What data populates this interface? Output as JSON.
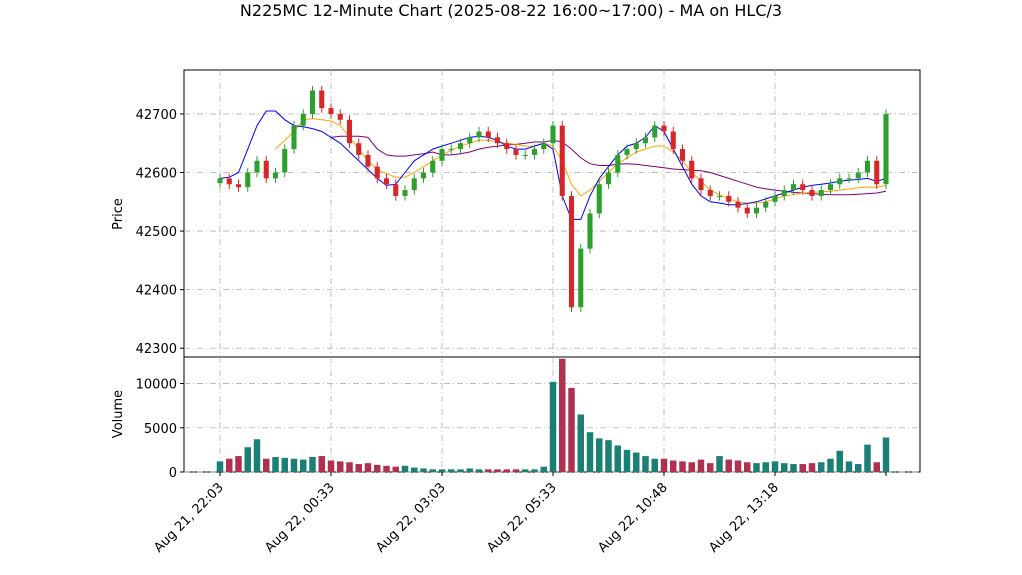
{
  "chart_data": {
    "type": "candlestick",
    "title": "N225MC 12-Minute Chart (2025-08-22 16:00~17:00) - MA on HLC/3",
    "price_panel": {
      "ylabel": "Price",
      "ylim": [
        42285,
        42775
      ],
      "yticks": [
        42300,
        42400,
        42500,
        42600,
        42700
      ]
    },
    "volume_panel": {
      "ylabel": "Volume",
      "ylim": [
        0,
        13000
      ],
      "yticks": [
        0,
        5000,
        10000
      ]
    },
    "x_tick_labels": [
      "Aug 21, 22:03",
      "Aug 22, 00:33",
      "Aug 22, 03:03",
      "Aug 22, 05:33",
      "Aug 22, 10:48",
      "Aug 22, 13:18"
    ],
    "x_tick_bar_index": [
      0,
      12,
      24,
      36,
      48,
      60
    ],
    "bar_count": 73,
    "grid": true,
    "colors": {
      "up": "#2ca02c",
      "down": "#d62728",
      "ma_fast": "#0000ff",
      "ma_mid": "#ffa500",
      "ma_slow": "#800080",
      "vol_up": "#1a7f74",
      "vol_down": "#b03050"
    },
    "ohlc_close": [
      42590,
      42580,
      42575,
      42600,
      42620,
      42590,
      42600,
      42640,
      42680,
      42700,
      42740,
      42710,
      42700,
      42690,
      42650,
      42630,
      42610,
      42590,
      42580,
      42560,
      42570,
      42590,
      42600,
      42620,
      42640,
      42640,
      42650,
      42660,
      42670,
      42660,
      42650,
      42640,
      42630,
      42630,
      42640,
      42650,
      42680,
      42560,
      42370,
      42470,
      42530,
      42580,
      42600,
      42630,
      42640,
      42650,
      42660,
      42680,
      42670,
      42640,
      42620,
      42590,
      42570,
      42560,
      42560,
      42550,
      42540,
      42530,
      42540,
      42550,
      42560,
      42570,
      42580,
      42570,
      42560,
      42570,
      42580,
      42590,
      42590,
      42600,
      42620,
      42580,
      42700
    ],
    "volume": [
      1200,
      1500,
      1800,
      2800,
      3700,
      1500,
      1700,
      1600,
      1500,
      1400,
      1700,
      1800,
      1300,
      1200,
      1100,
      900,
      1000,
      800,
      700,
      600,
      700,
      500,
      400,
      300,
      300,
      300,
      300,
      400,
      300,
      300,
      300,
      300,
      300,
      300,
      300,
      600,
      10200,
      12800,
      9500,
      6500,
      4500,
      3800,
      3600,
      3000,
      2500,
      2200,
      1800,
      1500,
      1500,
      1300,
      1200,
      1100,
      1400,
      1000,
      1800,
      1400,
      1300,
      1100,
      1000,
      1100,
      1200,
      1000,
      900,
      900,
      1000,
      1100,
      1500,
      2400,
      1200,
      900,
      3100,
      1100,
      3900
    ],
    "ma_fast": [
      42590,
      42592,
      42600,
      42640,
      42680,
      42705,
      42705,
      42690,
      42680,
      42678,
      42675,
      42670,
      42660,
      42650,
      42635,
      42620,
      42605,
      42590,
      42578,
      42580,
      42600,
      42620,
      42630,
      42640,
      42645,
      42650,
      42655,
      42660,
      42662,
      42660,
      42655,
      42645,
      42640,
      42640,
      42645,
      42650,
      42640,
      42560,
      42520,
      42520,
      42560,
      42590,
      42610,
      42630,
      42645,
      42650,
      42660,
      42680,
      42670,
      42640,
      42610,
      42580,
      42560,
      42550,
      42548,
      42545,
      42545,
      42547,
      42550,
      42555,
      42560,
      42565,
      42570,
      42575,
      42578,
      42580,
      42582,
      42585,
      42587,
      42588,
      42590,
      42585,
      42590
    ],
    "ma_mid": [
      null,
      null,
      null,
      null,
      null,
      null,
      42640,
      42655,
      42670,
      42690,
      42692,
      42690,
      42688,
      42680,
      42660,
      42640,
      42620,
      42605,
      42598,
      42592,
      42592,
      42600,
      42610,
      42620,
      42630,
      42638,
      42645,
      42650,
      42655,
      42655,
      42652,
      42650,
      42648,
      42645,
      42645,
      42650,
      42645,
      42620,
      42580,
      42560,
      42570,
      42585,
      42600,
      42615,
      42625,
      42635,
      42640,
      42645,
      42645,
      42635,
      42620,
      42600,
      42585,
      42570,
      42562,
      42555,
      42550,
      42548,
      42548,
      42550,
      42555,
      42560,
      42562,
      42565,
      42566,
      42567,
      42568,
      42570,
      42572,
      42574,
      42575,
      42575,
      42578
    ],
    "ma_slow": [
      null,
      null,
      null,
      null,
      null,
      null,
      null,
      null,
      null,
      null,
      null,
      null,
      42660,
      42662,
      42662,
      42662,
      42660,
      42640,
      42630,
      42628,
      42628,
      42630,
      42632,
      42635,
      42630,
      42630,
      42632,
      42635,
      42640,
      42643,
      42645,
      42647,
      42648,
      42650,
      42652,
      42652,
      42655,
      42652,
      42640,
      42625,
      42615,
      42612,
      42612,
      42614,
      42615,
      42614,
      42612,
      42610,
      42608,
      42606,
      42605,
      42604,
      42603,
      42600,
      42595,
      42590,
      42585,
      42580,
      42575,
      42572,
      42570,
      42568,
      42566,
      42565,
      42564,
      42563,
      42562,
      42562,
      42562,
      42563,
      42564,
      42565,
      42568
    ]
  }
}
